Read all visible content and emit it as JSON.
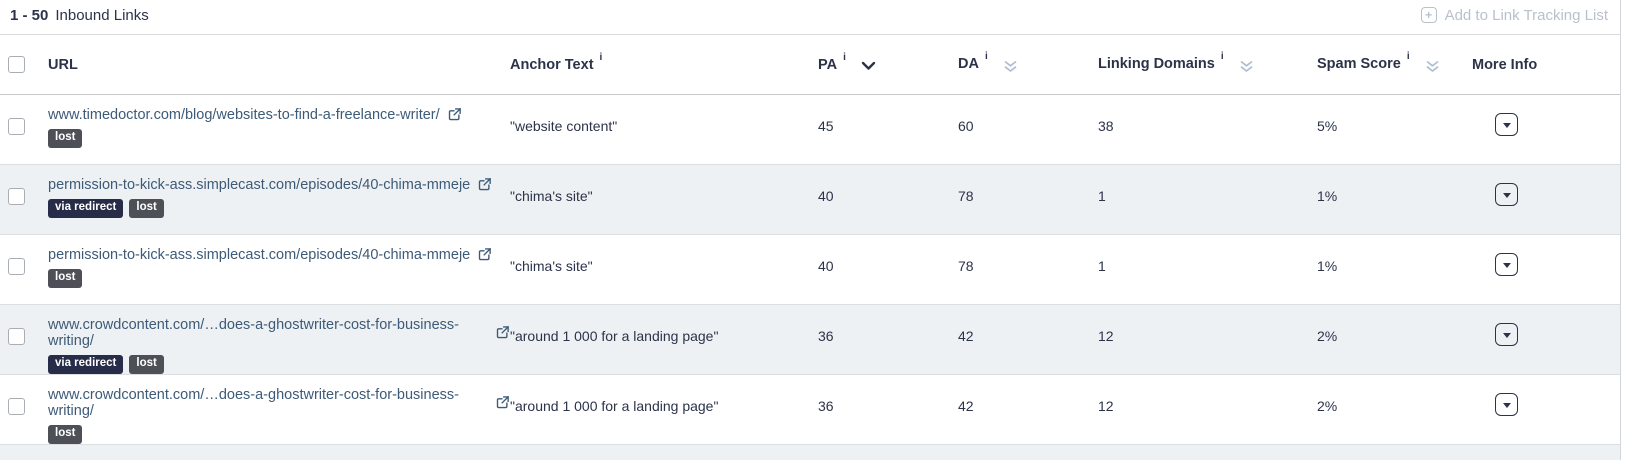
{
  "topbar": {
    "range": "1 - 50",
    "title": "Inbound Links",
    "action_label": "Add to Link Tracking List",
    "plus_glyph": "+"
  },
  "table": {
    "columns": [
      {
        "key": "url",
        "label": "URL",
        "info": false,
        "sort": "none"
      },
      {
        "key": "anchor",
        "label": "Anchor Text",
        "info": true,
        "sort": "none"
      },
      {
        "key": "pa",
        "label": "PA",
        "info": true,
        "sort": "desc"
      },
      {
        "key": "da",
        "label": "DA",
        "info": true,
        "sort": "sortable"
      },
      {
        "key": "ld",
        "label": "Linking Domains",
        "info": true,
        "sort": "sortable"
      },
      {
        "key": "spam",
        "label": "Spam Score",
        "info": true,
        "sort": "sortable"
      },
      {
        "key": "more",
        "label": "More Info",
        "info": false,
        "sort": "none"
      }
    ],
    "info_glyph": "i",
    "rows": [
      {
        "url": "www.timedoctor.com/blog/websites-to-find-a-freelance-writer/",
        "badges": [
          "lost"
        ],
        "anchor": "\"website content\"",
        "pa": "45",
        "da": "60",
        "linking_domains": "38",
        "spam_score": "5%"
      },
      {
        "url": "permission-to-kick-ass.simplecast.com/episodes/40-chima-mmeje",
        "badges": [
          "via redirect",
          "lost"
        ],
        "anchor": "\"chima's site\"",
        "pa": "40",
        "da": "78",
        "linking_domains": "1",
        "spam_score": "1%"
      },
      {
        "url": "permission-to-kick-ass.simplecast.com/episodes/40-chima-mmeje",
        "badges": [
          "lost"
        ],
        "anchor": "\"chima's site\"",
        "pa": "40",
        "da": "78",
        "linking_domains": "1",
        "spam_score": "1%"
      },
      {
        "url": "www.crowdcontent.com/…does-a-ghostwriter-cost-for-business-writing/",
        "badges": [
          "via redirect",
          "lost"
        ],
        "anchor": "\"around 1 000 for a landing page\"",
        "pa": "36",
        "da": "42",
        "linking_domains": "12",
        "spam_score": "2%"
      },
      {
        "url": "www.crowdcontent.com/…does-a-ghostwriter-cost-for-business-writing/",
        "badges": [
          "lost"
        ],
        "anchor": "\"around 1 000 for a landing page\"",
        "pa": "36",
        "da": "42",
        "linking_domains": "12",
        "spam_score": "2%"
      }
    ]
  },
  "colors": {
    "text": "#2c3349",
    "link": "#3d5a77",
    "badge_navy": "#272d49",
    "badge_gray": "#4d5157",
    "muted_action": "#b9c1cc",
    "sort_inactive": "#aebdd2",
    "row_alt": "#eef1f4"
  }
}
